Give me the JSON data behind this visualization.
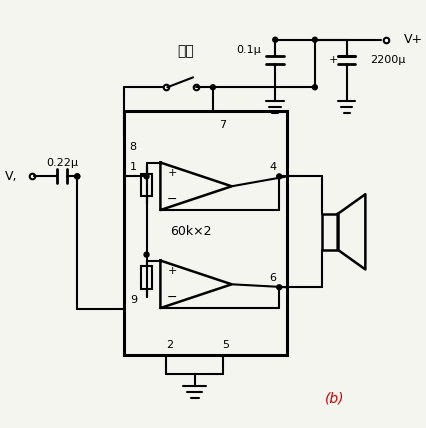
{
  "bg_color": "#f5f5f0",
  "line_color": "#000000",
  "text_color": "#000000",
  "red_text_color": "#cc0000",
  "label_Vi": "V,",
  "label_022": "0.22μ",
  "label_60k": "60k×2",
  "label_01": "0.1μ",
  "label_2200": "2200μ",
  "label_Vplus": "V+",
  "label_jing": "静噪",
  "label_b": "(b)"
}
